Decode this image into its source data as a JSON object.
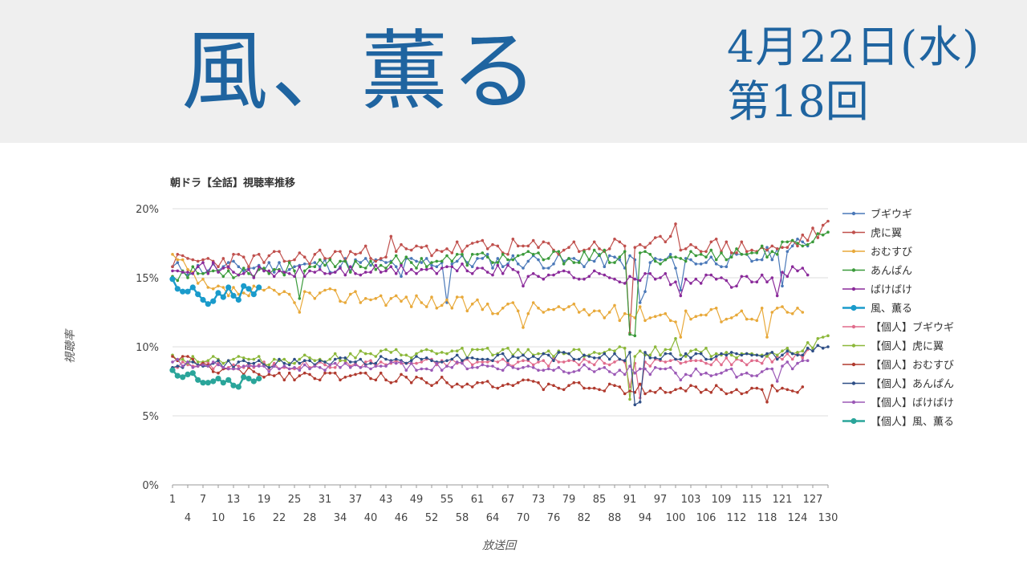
{
  "header": {
    "drama_title": "風、薫る",
    "date": "4月22日(水)",
    "episode": "第18回"
  },
  "chart_data": {
    "type": "line",
    "title": "朝ドラ【全話】視聴率推移",
    "xlabel": "放送回",
    "ylabel": "視聴率",
    "ylim": [
      0,
      20
    ],
    "yticks": [
      "0%",
      "5%",
      "10%",
      "15%",
      "20%"
    ],
    "xtick_row1": [
      "1",
      "7",
      "13",
      "19",
      "25",
      "31",
      "37",
      "43",
      "49",
      "55",
      "61",
      "67",
      "73",
      "79",
      "85",
      "91",
      "97",
      "103",
      "109",
      "115",
      "121",
      "127"
    ],
    "xtick_row2": [
      "4",
      "10",
      "16",
      "22",
      "28",
      "34",
      "40",
      "46",
      "52",
      "58",
      "64",
      "70",
      "76",
      "82",
      "88",
      "94",
      "100",
      "106",
      "112",
      "118",
      "124",
      "130"
    ],
    "xlim": [
      1,
      130
    ],
    "legend_position": "right",
    "series": [
      {
        "name": "ブギウギ",
        "color": "#4a78b8",
        "n": 126,
        "levels": [
          [
            1,
            15.6
          ],
          [
            20,
            15.8
          ],
          [
            40,
            16.0
          ],
          [
            60,
            16.2
          ],
          [
            80,
            16.2
          ],
          [
            100,
            16.2
          ],
          [
            115,
            16.3
          ],
          [
            126,
            17.5
          ]
        ],
        "amp": 0.55,
        "seed": 11,
        "dips": [
          [
            55,
            13.2
          ],
          [
            46,
            15.1
          ],
          [
            93,
            13.2
          ],
          [
            94,
            14.0
          ],
          [
            101,
            14.1
          ],
          [
            121,
            14.4
          ]
        ]
      },
      {
        "name": "虎に翼",
        "color": "#c0504d",
        "n": 130,
        "levels": [
          [
            1,
            16.2
          ],
          [
            20,
            16.3
          ],
          [
            40,
            16.8
          ],
          [
            60,
            17.2
          ],
          [
            80,
            17.2
          ],
          [
            100,
            17.5
          ],
          [
            120,
            17.0
          ],
          [
            130,
            18.6
          ]
        ],
        "amp": 0.6,
        "seed": 23,
        "dips": [
          [
            91,
            11.0
          ],
          [
            100,
            18.9
          ],
          [
            44,
            18.0
          ]
        ]
      },
      {
        "name": "おむすび",
        "color": "#e8a93a",
        "n": 125,
        "levels": [
          [
            1,
            16.5
          ],
          [
            8,
            14.0
          ],
          [
            20,
            13.8
          ],
          [
            40,
            13.6
          ],
          [
            60,
            13.0
          ],
          [
            80,
            12.6
          ],
          [
            100,
            12.3
          ],
          [
            125,
            12.5
          ]
        ],
        "amp": 0.55,
        "seed": 37,
        "dips": [
          [
            26,
            12.5
          ],
          [
            70,
            11.4
          ],
          [
            101,
            10.7
          ],
          [
            118,
            10.7
          ]
        ]
      },
      {
        "name": "あんぱん",
        "color": "#3a9a3a",
        "n": 130,
        "levels": [
          [
            1,
            15.3
          ],
          [
            20,
            15.6
          ],
          [
            40,
            16.0
          ],
          [
            60,
            16.4
          ],
          [
            80,
            16.5
          ],
          [
            100,
            16.5
          ],
          [
            120,
            17.0
          ],
          [
            130,
            18.2
          ]
        ],
        "amp": 0.5,
        "seed": 53,
        "dips": [
          [
            91,
            10.9
          ],
          [
            92,
            10.8
          ],
          [
            26,
            13.5
          ]
        ]
      },
      {
        "name": "ばけばけ",
        "color": "#8a2a9a",
        "n": 126,
        "levels": [
          [
            1,
            15.9
          ],
          [
            20,
            15.3
          ],
          [
            40,
            15.5
          ],
          [
            60,
            15.6
          ],
          [
            80,
            15.2
          ],
          [
            100,
            14.9
          ],
          [
            115,
            14.7
          ],
          [
            126,
            15.6
          ]
        ],
        "amp": 0.45,
        "seed": 71,
        "dips": [
          [
            70,
            14.4
          ],
          [
            101,
            13.7
          ],
          [
            120,
            13.7
          ]
        ]
      },
      {
        "name": "風、薫る",
        "color": "#1a9bcb",
        "n": 18,
        "values": [
          14.9,
          14.2,
          14.0,
          14.0,
          14.3,
          13.8,
          13.4,
          13.1,
          13.3,
          13.9,
          13.6,
          14.3,
          13.7,
          13.4,
          14.4,
          14.2,
          13.8,
          14.3
        ]
      },
      {
        "name": "【個人】ブギウギ",
        "color": "#e06c8c",
        "n": 126,
        "levels": [
          [
            1,
            8.7
          ],
          [
            20,
            8.6
          ],
          [
            40,
            8.8
          ],
          [
            60,
            8.9
          ],
          [
            80,
            8.9
          ],
          [
            100,
            8.9
          ],
          [
            115,
            9.0
          ],
          [
            126,
            9.5
          ]
        ],
        "amp": 0.3,
        "seed": 101,
        "dips": [
          [
            91,
            7.1
          ],
          [
            93,
            6.3
          ]
        ]
      },
      {
        "name": "【個人】虎に翼",
        "color": "#8cb83a",
        "n": 130,
        "levels": [
          [
            1,
            9.2
          ],
          [
            20,
            9.0
          ],
          [
            40,
            9.4
          ],
          [
            60,
            9.6
          ],
          [
            80,
            9.6
          ],
          [
            100,
            9.7
          ],
          [
            120,
            9.4
          ],
          [
            130,
            10.5
          ]
        ],
        "amp": 0.35,
        "seed": 113,
        "dips": [
          [
            91,
            6.2
          ],
          [
            100,
            10.6
          ]
        ]
      },
      {
        "name": "【個人】おむすび",
        "color": "#b03a2e",
        "n": 125,
        "levels": [
          [
            1,
            9.3
          ],
          [
            10,
            8.3
          ],
          [
            20,
            8.0
          ],
          [
            40,
            7.8
          ],
          [
            60,
            7.4
          ],
          [
            80,
            7.1
          ],
          [
            100,
            6.9
          ],
          [
            125,
            7.0
          ]
        ],
        "amp": 0.35,
        "seed": 131,
        "dips": [
          [
            90,
            6.6
          ],
          [
            118,
            6.0
          ]
        ]
      },
      {
        "name": "【個人】あんぱん",
        "color": "#2e4e86",
        "n": 130,
        "levels": [
          [
            1,
            8.7
          ],
          [
            20,
            8.8
          ],
          [
            40,
            9.0
          ],
          [
            60,
            9.2
          ],
          [
            80,
            9.3
          ],
          [
            100,
            9.3
          ],
          [
            120,
            9.4
          ],
          [
            130,
            10.0
          ]
        ],
        "amp": 0.3,
        "seed": 149,
        "dips": [
          [
            92,
            5.8
          ],
          [
            93,
            6.0
          ]
        ]
      },
      {
        "name": "【個人】ばけばけ",
        "color": "#9b59b6",
        "n": 126,
        "levels": [
          [
            1,
            8.8
          ],
          [
            20,
            8.4
          ],
          [
            40,
            8.6
          ],
          [
            60,
            8.6
          ],
          [
            80,
            8.4
          ],
          [
            100,
            8.2
          ],
          [
            115,
            8.0
          ],
          [
            126,
            8.9
          ]
        ],
        "amp": 0.3,
        "seed": 163,
        "dips": [
          [
            101,
            7.6
          ],
          [
            120,
            7.5
          ]
        ]
      },
      {
        "name": "【個人】風、薫る",
        "color": "#2aa59a",
        "n": 18,
        "values": [
          8.3,
          7.9,
          7.8,
          8.0,
          8.1,
          7.6,
          7.4,
          7.4,
          7.5,
          7.7,
          7.4,
          7.6,
          7.2,
          7.1,
          7.8,
          7.7,
          7.5,
          7.7
        ]
      }
    ]
  }
}
